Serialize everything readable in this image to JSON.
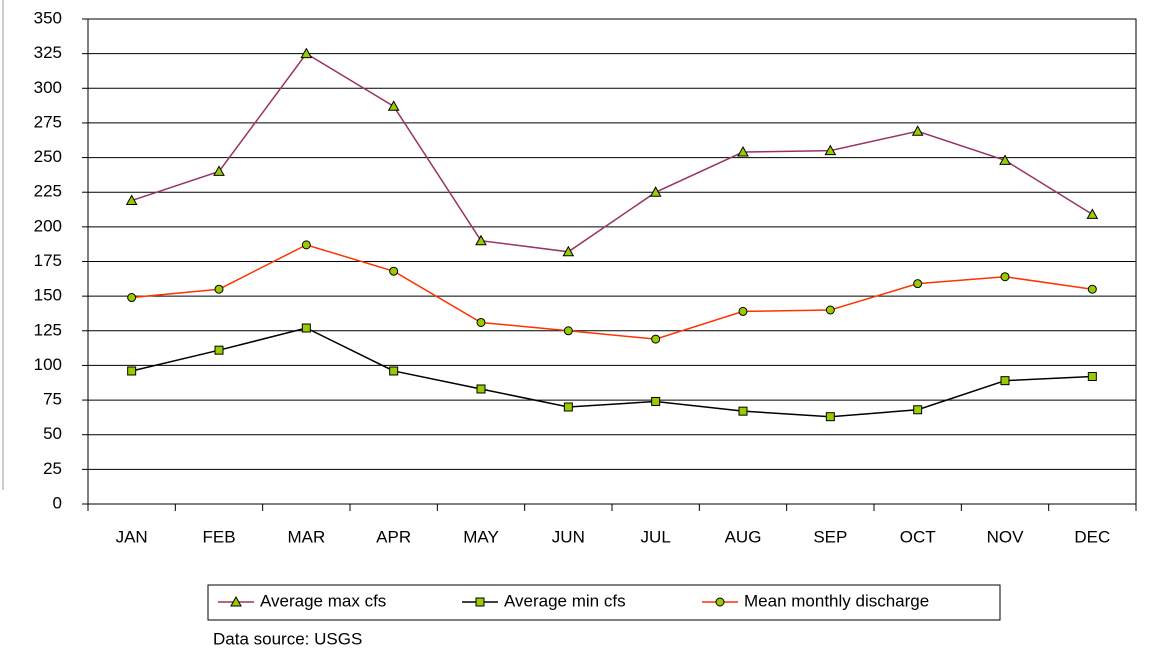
{
  "chart_data": {
    "type": "line",
    "categories": [
      "JAN",
      "FEB",
      "MAR",
      "APR",
      "MAY",
      "JUN",
      "JUL",
      "AUG",
      "SEP",
      "OCT",
      "NOV",
      "DEC"
    ],
    "series": [
      {
        "name": "Average max cfs",
        "color": "#993366",
        "marker": "triangle",
        "marker_color": "#99cc00",
        "values": [
          219,
          240,
          325,
          287,
          190,
          182,
          225,
          254,
          255,
          269,
          248,
          209
        ]
      },
      {
        "name": "Average min cfs",
        "color": "#000000",
        "marker": "square",
        "marker_color": "#99cc00",
        "values": [
          96,
          111,
          127,
          96,
          83,
          70,
          74,
          67,
          63,
          68,
          89,
          92
        ]
      },
      {
        "name": "Mean monthly discharge",
        "color": "#ff3300",
        "marker": "circle",
        "marker_color": "#99cc00",
        "values": [
          149,
          155,
          187,
          168,
          131,
          125,
          119,
          139,
          140,
          159,
          164,
          155
        ]
      }
    ],
    "ylim": [
      0,
      350
    ],
    "yticks": [
      0,
      25,
      50,
      75,
      100,
      125,
      150,
      175,
      200,
      225,
      250,
      275,
      300,
      325,
      350
    ],
    "grid": true,
    "legend": "bottom",
    "source": "Data source: USGS"
  }
}
